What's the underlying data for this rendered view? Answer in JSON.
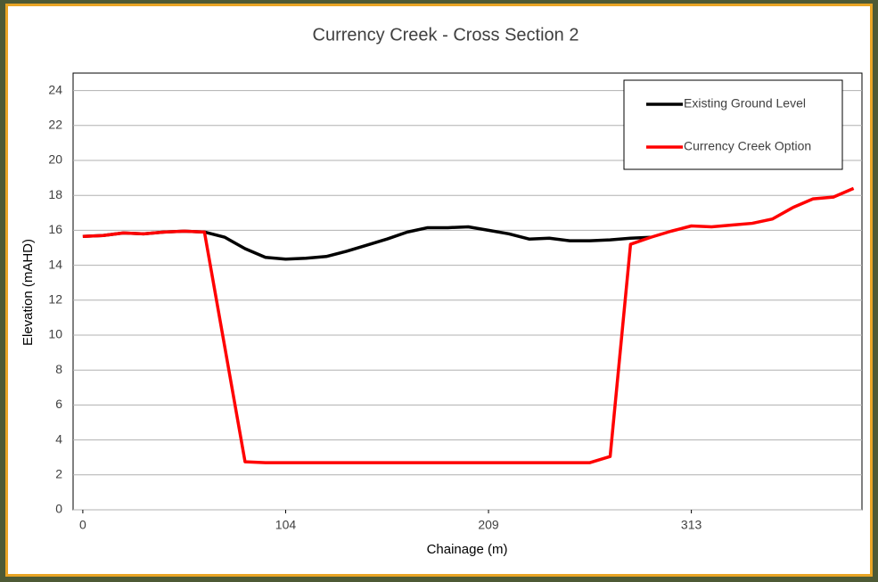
{
  "chart_data": {
    "type": "line",
    "title": "Currency Creek - Cross Section 2",
    "x_label": "Chainage (m)",
    "y_label": "Elevation (mAHD)",
    "x": [
      0,
      10.4,
      20.9,
      31.3,
      41.8,
      52.2,
      62.6,
      73.1,
      83.5,
      94.0,
      104.4,
      114.8,
      125.3,
      135.7,
      146.2,
      156.6,
      167.0,
      177.5,
      187.9,
      198.4,
      208.8,
      219.2,
      229.7,
      240.1,
      250.6,
      261.0,
      271.4,
      281.9,
      292.3,
      302.8,
      313.2,
      323.6,
      334.1,
      344.5,
      355.0,
      365.4,
      375.8,
      386.3,
      396.7
    ],
    "series": [
      {
        "name": "Existing Ground Level",
        "color": "#000000",
        "values": [
          15.65,
          15.7,
          15.85,
          15.8,
          15.9,
          15.95,
          15.9,
          15.6,
          14.95,
          14.45,
          14.35,
          14.4,
          14.5,
          14.8,
          15.15,
          15.5,
          15.9,
          16.15,
          16.15,
          16.2,
          16.0,
          15.8,
          15.5,
          15.55,
          15.4,
          15.4,
          15.45,
          15.55,
          15.6,
          null,
          null,
          null,
          null,
          null,
          null,
          null,
          null,
          null,
          null
        ]
      },
      {
        "name": "Currency Creek Option",
        "color": "#ff0000",
        "values": [
          15.65,
          15.7,
          15.85,
          15.8,
          15.9,
          15.95,
          15.9,
          9.3,
          2.75,
          2.7,
          2.7,
          2.7,
          2.7,
          2.7,
          2.7,
          2.7,
          2.7,
          2.7,
          2.7,
          2.7,
          2.7,
          2.7,
          2.7,
          2.7,
          2.7,
          2.7,
          3.05,
          15.2,
          15.6,
          15.95,
          16.25,
          16.2,
          16.3,
          16.4,
          16.65,
          17.3,
          17.8,
          17.9,
          18.4
        ]
      }
    ],
    "xlim": [
      -5,
      401
    ],
    "xticks": [
      0,
      {
        "value": 104.4,
        "label": "104"
      },
      {
        "value": 208.8,
        "label": "209"
      },
      {
        "value": 313.2,
        "label": "313"
      }
    ],
    "ylim": [
      0,
      25
    ],
    "yticks": [
      0,
      2,
      4,
      6,
      8,
      10,
      12,
      14,
      16,
      18,
      20,
      22,
      24
    ],
    "grid": true,
    "legend": "top-right"
  }
}
